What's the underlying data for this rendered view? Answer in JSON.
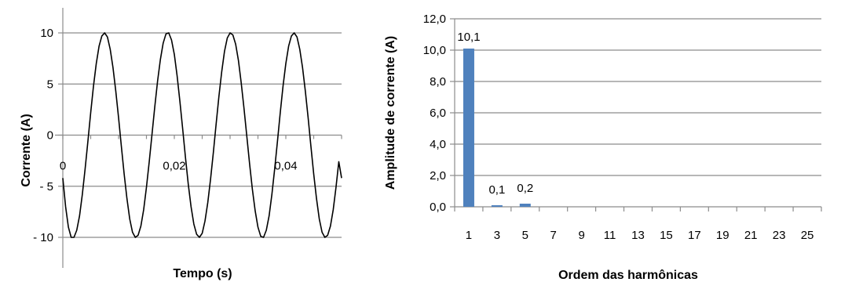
{
  "chart_data": [
    {
      "type": "line",
      "xlabel": "Tempo (s)",
      "ylabel": "Corrente (A)",
      "xlim": [
        0,
        0.05
      ],
      "ylim": [
        -10,
        10
      ],
      "x_ticks": [
        "0",
        "0,02",
        "0,04"
      ],
      "y_ticks": [
        "10",
        "5",
        "0",
        "- 5",
        "- 10"
      ],
      "grid": "horizontal",
      "series": [
        {
          "color": "#000000",
          "x": [
            0,
            0.0005,
            0.001,
            0.0015,
            0.002,
            0.0025,
            0.003,
            0.0035,
            0.004,
            0.0045,
            0.005,
            0.0055,
            0.006,
            0.0065,
            0.007,
            0.0075,
            0.008,
            0.0085,
            0.009,
            0.0095,
            0.01,
            0.0105,
            0.011,
            0.0115,
            0.012,
            0.0125,
            0.013,
            0.0135,
            0.014,
            0.0145,
            0.015,
            0.0155,
            0.016,
            0.0165,
            0.017,
            0.0175,
            0.018,
            0.0185,
            0.019,
            0.0195,
            0.02,
            0.0205,
            0.021,
            0.0215,
            0.022,
            0.0225,
            0.023,
            0.0235,
            0.024,
            0.0245,
            0.025,
            0.0255,
            0.026,
            0.0265,
            0.027,
            0.0275,
            0.028,
            0.0285,
            0.029,
            0.0295,
            0.03,
            0.0305,
            0.031,
            0.0315,
            0.032,
            0.0325,
            0.033,
            0.0335,
            0.034,
            0.0345,
            0.035,
            0.0355,
            0.036,
            0.0365,
            0.037,
            0.0375,
            0.038,
            0.0385,
            0.039,
            0.0395,
            0.04,
            0.0405,
            0.041,
            0.0415,
            0.042,
            0.0425,
            0.043,
            0.0435,
            0.044,
            0.0445,
            0.045,
            0.0455,
            0.046,
            0.0465,
            0.047,
            0.0475,
            0.048,
            0.0485,
            0.049,
            0.0495,
            0.05
          ],
          "values": [
            -4.2,
            -7.0,
            -9.0,
            -10.0,
            -10.0,
            -9.3,
            -7.9,
            -5.8,
            -3.3,
            -0.6,
            2.2,
            4.8,
            7.0,
            8.7,
            9.7,
            10.0,
            9.6,
            8.4,
            6.6,
            4.3,
            1.7,
            -1.1,
            -3.8,
            -6.2,
            -8.2,
            -9.5,
            -10.0,
            -9.8,
            -8.9,
            -7.3,
            -5.1,
            -2.6,
            0.1,
            2.8,
            5.3,
            7.4,
            9.0,
            9.9,
            10.0,
            9.3,
            7.9,
            5.8,
            3.3,
            0.6,
            -2.2,
            -4.8,
            -7.0,
            -8.7,
            -9.7,
            -10.0,
            -9.6,
            -8.4,
            -6.6,
            -4.3,
            -1.7,
            1.1,
            3.8,
            6.2,
            8.2,
            9.5,
            10.0,
            9.8,
            8.9,
            7.3,
            5.1,
            2.6,
            -0.1,
            -2.8,
            -5.3,
            -7.4,
            -9.0,
            -9.9,
            -10.0,
            -9.3,
            -7.9,
            -5.8,
            -3.3,
            -0.6,
            2.2,
            4.8,
            7.0,
            8.7,
            9.7,
            10.0,
            9.6,
            8.4,
            6.6,
            4.3,
            1.7,
            -1.1,
            -3.8,
            -6.2,
            -8.2,
            -9.5,
            -10.0,
            -9.8,
            -8.9,
            -7.3,
            -5.1,
            -2.6,
            -4.2
          ]
        }
      ]
    },
    {
      "type": "bar",
      "xlabel": "Ordem das harmônicas",
      "ylabel": "Amplitude de corrente (A)",
      "ylim": [
        0,
        12
      ],
      "y_ticks": [
        "12,0",
        "10,0",
        "8,0",
        "6,0",
        "4,0",
        "2,0",
        "0,0"
      ],
      "grid": "horizontal",
      "color": "#4f81bd",
      "categories": [
        "1",
        "3",
        "5",
        "7",
        "9",
        "11",
        "13",
        "15",
        "17",
        "19",
        "21",
        "23",
        "25"
      ],
      "values": [
        10.1,
        0.1,
        0.2,
        0,
        0,
        0,
        0,
        0,
        0,
        0,
        0,
        0,
        0
      ],
      "data_labels": [
        "10,1",
        "0,1",
        "0,2",
        "",
        "",
        "",
        "",
        "",
        "",
        "",
        "",
        "",
        ""
      ]
    }
  ]
}
